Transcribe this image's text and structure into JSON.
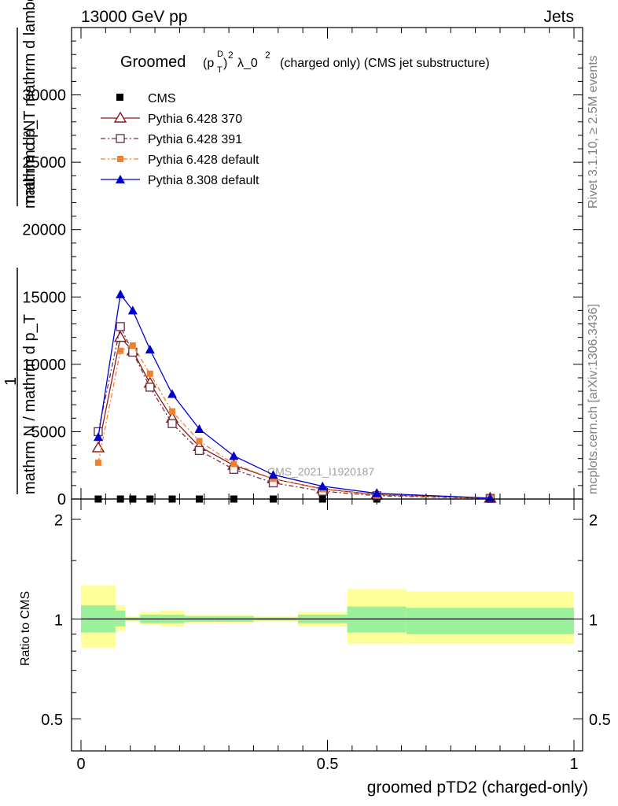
{
  "header": {
    "left": "13000 GeV pp",
    "right": "Jets",
    "side_top": "Rivet 3.1.10, ≥ 2.5M events",
    "side_bottom": "mcplots.cern.ch [arXiv:1306.3436]",
    "watermark": "CMS_2021_I1920187"
  },
  "chart_data": [
    {
      "type": "line",
      "title_main": "Groomed",
      "title_rest": "λ_0",
      "title_sup": "2",
      "title_tail": "(charged only) (CMS jet substructure)",
      "title_p": "(p",
      "title_T": "T",
      "title_D": "D",
      "title_close": ")",
      "ylabel_num": "mathrm d²N",
      "ylabel_den": "mathrm d p_T mathrm d lambda",
      "ylabel_den_T": "T",
      "ylabel_one": "1",
      "ylabel_norm": "mathrm N / mathrm d p_T",
      "yticks": [
        "0",
        "5000",
        "10000",
        "15000",
        "20000",
        "25000",
        "30000"
      ],
      "ylim": [
        0,
        35000
      ],
      "xlim": [
        0,
        1
      ],
      "grid": false,
      "legend_position": "top-left",
      "series": [
        {
          "name": "CMS",
          "color": "#000000",
          "marker": "square-filled",
          "x": [
            0.035,
            0.08,
            0.105,
            0.14,
            0.185,
            0.24,
            0.31,
            0.39,
            0.49,
            0.6,
            0.83
          ],
          "y": [
            0,
            0,
            0,
            0,
            0,
            0,
            0,
            0,
            0,
            0,
            0
          ]
        },
        {
          "name": "Pythia 6.428 370",
          "color": "#8b1a1a",
          "marker": "triangle-open",
          "x": [
            0.035,
            0.08,
            0.105,
            0.14,
            0.185,
            0.24,
            0.31,
            0.39,
            0.49,
            0.6,
            0.83
          ],
          "y": [
            3800,
            12000,
            11000,
            8600,
            6000,
            3900,
            2500,
            1500,
            750,
            320,
            60
          ]
        },
        {
          "name": "Pythia 6.428 391",
          "color": "#6b3a4a",
          "marker": "square-open",
          "x": [
            0.035,
            0.08,
            0.105,
            0.14,
            0.185,
            0.24,
            0.31,
            0.39,
            0.49,
            0.6,
            0.83
          ],
          "y": [
            5000,
            12800,
            10900,
            8300,
            5600,
            3600,
            2200,
            1200,
            580,
            240,
            45
          ]
        },
        {
          "name": "Pythia 6.428 default",
          "color": "#f08030",
          "marker": "square-filled",
          "x": [
            0.035,
            0.08,
            0.105,
            0.14,
            0.185,
            0.24,
            0.31,
            0.39,
            0.49,
            0.6,
            0.83
          ],
          "y": [
            2700,
            11000,
            11400,
            9300,
            6500,
            4300,
            2600,
            1500,
            730,
            300,
            55
          ]
        },
        {
          "name": "Pythia 8.308 default",
          "color": "#0000cc",
          "marker": "triangle-filled",
          "x": [
            0.035,
            0.08,
            0.105,
            0.14,
            0.185,
            0.24,
            0.31,
            0.39,
            0.49,
            0.6,
            0.83
          ],
          "y": [
            4600,
            15200,
            14000,
            11100,
            7800,
            5200,
            3200,
            1800,
            950,
            420,
            75
          ]
        }
      ]
    },
    {
      "type": "area",
      "ylabel": "Ratio to CMS",
      "xlabel": "groomed pTD2 (charged-only)",
      "xticks": [
        "0",
        "0.5",
        "1"
      ],
      "yticks": [
        "0.5",
        "1",
        "2"
      ],
      "ylim": [
        0.4,
        2.3
      ],
      "yscale": "log",
      "xlim": [
        0,
        1
      ],
      "band_colors": {
        "stat": "#99f299",
        "total": "#ffff99",
        "line": "#000000"
      },
      "bins": [
        0,
        0.07,
        0.09,
        0.12,
        0.16,
        0.21,
        0.27,
        0.35,
        0.44,
        0.54,
        0.66,
        1.0
      ],
      "band_inner": [
        [
          0.91,
          1.1
        ],
        [
          0.95,
          1.06
        ],
        [
          0.99,
          1.01
        ],
        [
          0.97,
          1.03
        ],
        [
          0.97,
          1.03
        ],
        [
          0.98,
          1.02
        ],
        [
          0.98,
          1.02
        ],
        [
          0.99,
          1.01
        ],
        [
          0.97,
          1.03
        ],
        [
          0.91,
          1.09
        ],
        [
          0.9,
          1.08
        ],
        [
          0.92,
          1.08
        ]
      ],
      "band_outer": [
        [
          0.82,
          1.26
        ],
        [
          0.92,
          1.1
        ],
        [
          0.98,
          1.02
        ],
        [
          0.96,
          1.05
        ],
        [
          0.95,
          1.06
        ],
        [
          0.97,
          1.03
        ],
        [
          0.97,
          1.03
        ],
        [
          0.98,
          1.02
        ],
        [
          0.95,
          1.05
        ],
        [
          0.84,
          1.23
        ],
        [
          0.84,
          1.21
        ],
        [
          0.88,
          1.17
        ]
      ]
    }
  ]
}
